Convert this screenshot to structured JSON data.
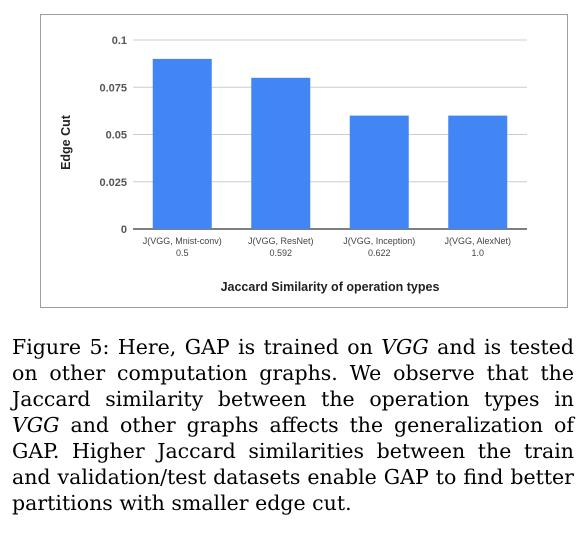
{
  "chart_data": {
    "type": "bar",
    "categories": [
      {
        "label": "J(VGG, Mnist-conv)",
        "sublabel": "0.5"
      },
      {
        "label": "J(VGG, ResNet)",
        "sublabel": "0.592"
      },
      {
        "label": "J(VGG, Inception)",
        "sublabel": "0.622"
      },
      {
        "label": "J(VGG, AlexNet)",
        "sublabel": "1.0"
      }
    ],
    "values": [
      0.09,
      0.08,
      0.06,
      0.06
    ],
    "xlabel": "Jaccard Similarity of operation types",
    "ylabel": "Edge Cut",
    "ylim": [
      0,
      0.1
    ],
    "yticks": [
      "0",
      "0.025",
      "0.05",
      "0.075",
      "0.1"
    ],
    "ytick_values": [
      0,
      0.025,
      0.05,
      0.075,
      0.1
    ],
    "grid": true,
    "bar_color": "#4285f4",
    "grid_color": "#cccccc"
  },
  "caption": {
    "label": "Figure 5:",
    "parts": [
      "Here, GAP is trained on ",
      "VGG",
      " and is tested on other computation graphs. We observe that the Jaccard similarity between the operation types in ",
      "VGG",
      " and other graphs affects the generalization of GAP. Higher Jaccard similarities between the train and validation/test datasets enable GAP to find better partitions with smaller edge cut."
    ]
  }
}
